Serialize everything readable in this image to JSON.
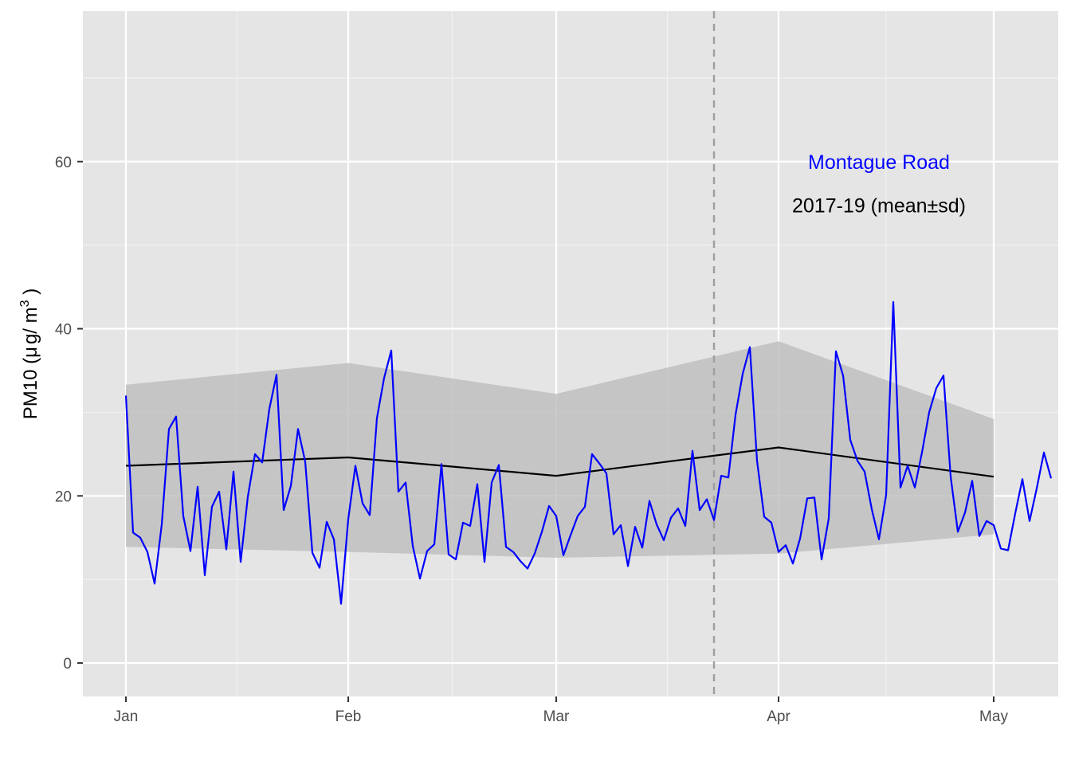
{
  "chart_data": {
    "type": "line",
    "xlabel": "",
    "ylabel": "PM10 (μg/m³)",
    "ylabel_parts": {
      "main": "PM10 (",
      "mu": "μ",
      "unit": "g/ m",
      "sup": "3",
      "close": " )"
    },
    "x_ticks": [
      {
        "label": "Jan",
        "day": 0
      },
      {
        "label": "Feb",
        "day": 31
      },
      {
        "label": "Mar",
        "day": 60
      },
      {
        "label": "Apr",
        "day": 91
      },
      {
        "label": "May",
        "day": 121
      }
    ],
    "xlim_days": [
      -6,
      130
    ],
    "ylim": [
      -4,
      78
    ],
    "y_ticks": [
      0,
      20,
      40,
      60
    ],
    "grid": true,
    "reference_line": {
      "day": 82,
      "style": "dashed"
    },
    "annotations": [
      {
        "text": "Montague Road",
        "color": "#0000ff",
        "day": 105,
        "y": 60
      },
      {
        "text": "2017-19 (mean±sd)",
        "color": "#000000",
        "day": 105,
        "y": 54.8
      }
    ],
    "baseline": {
      "name": "2017-19 (mean±sd)",
      "days": [
        0,
        31,
        60,
        91,
        121
      ],
      "mean": [
        23.6,
        24.6,
        22.4,
        25.8,
        22.3
      ],
      "upper": [
        33.3,
        35.9,
        32.2,
        38.5,
        29.2
      ],
      "lower": [
        13.9,
        13.3,
        12.6,
        13.1,
        15.4
      ]
    },
    "series": [
      {
        "name": "Montague Road",
        "color": "#0000ff",
        "start_date": "Jan 1",
        "values": [
          32.0,
          15.6,
          15.0,
          13.3,
          9.5,
          16.6,
          28.0,
          29.5,
          17.6,
          13.4,
          21.1,
          10.5,
          18.7,
          20.5,
          13.6,
          22.9,
          12.1,
          19.9,
          25.0,
          24.0,
          30.4,
          34.5,
          18.3,
          21.2,
          28.0,
          24.1,
          13.2,
          11.4,
          16.9,
          14.8,
          7.1,
          17.2,
          23.6,
          19.1,
          17.7,
          29.3,
          34.1,
          37.4,
          20.5,
          21.6,
          14.0,
          10.1,
          13.4,
          14.2,
          23.8,
          13.0,
          12.4,
          16.8,
          16.4,
          21.4,
          12.1,
          21.6,
          23.7,
          13.9,
          13.3,
          12.2,
          11.3,
          13.1,
          15.7,
          18.8,
          17.6,
          12.9,
          15.3,
          17.6,
          18.7,
          25.0,
          23.9,
          22.7,
          15.4,
          16.5,
          11.6,
          16.3,
          13.8,
          19.4,
          16.6,
          14.7,
          17.4,
          18.5,
          16.4,
          25.4,
          18.3,
          19.6,
          17.1,
          22.4,
          22.2,
          29.7,
          34.6,
          37.8,
          24.2,
          17.5,
          16.8,
          13.3,
          14.1,
          11.9,
          14.9,
          19.7,
          19.8,
          12.4,
          17.3,
          37.3,
          34.4,
          26.7,
          24.2,
          22.9,
          18.4,
          14.8,
          20.1,
          43.2,
          21.0,
          23.6,
          21.0,
          25.2,
          30.0,
          32.9,
          34.4,
          22.3,
          15.7,
          18.0,
          21.8,
          15.2,
          17.0,
          16.5,
          13.7,
          13.5,
          17.9,
          22.0,
          17.0,
          20.9,
          25.2,
          22.1
        ]
      }
    ]
  }
}
